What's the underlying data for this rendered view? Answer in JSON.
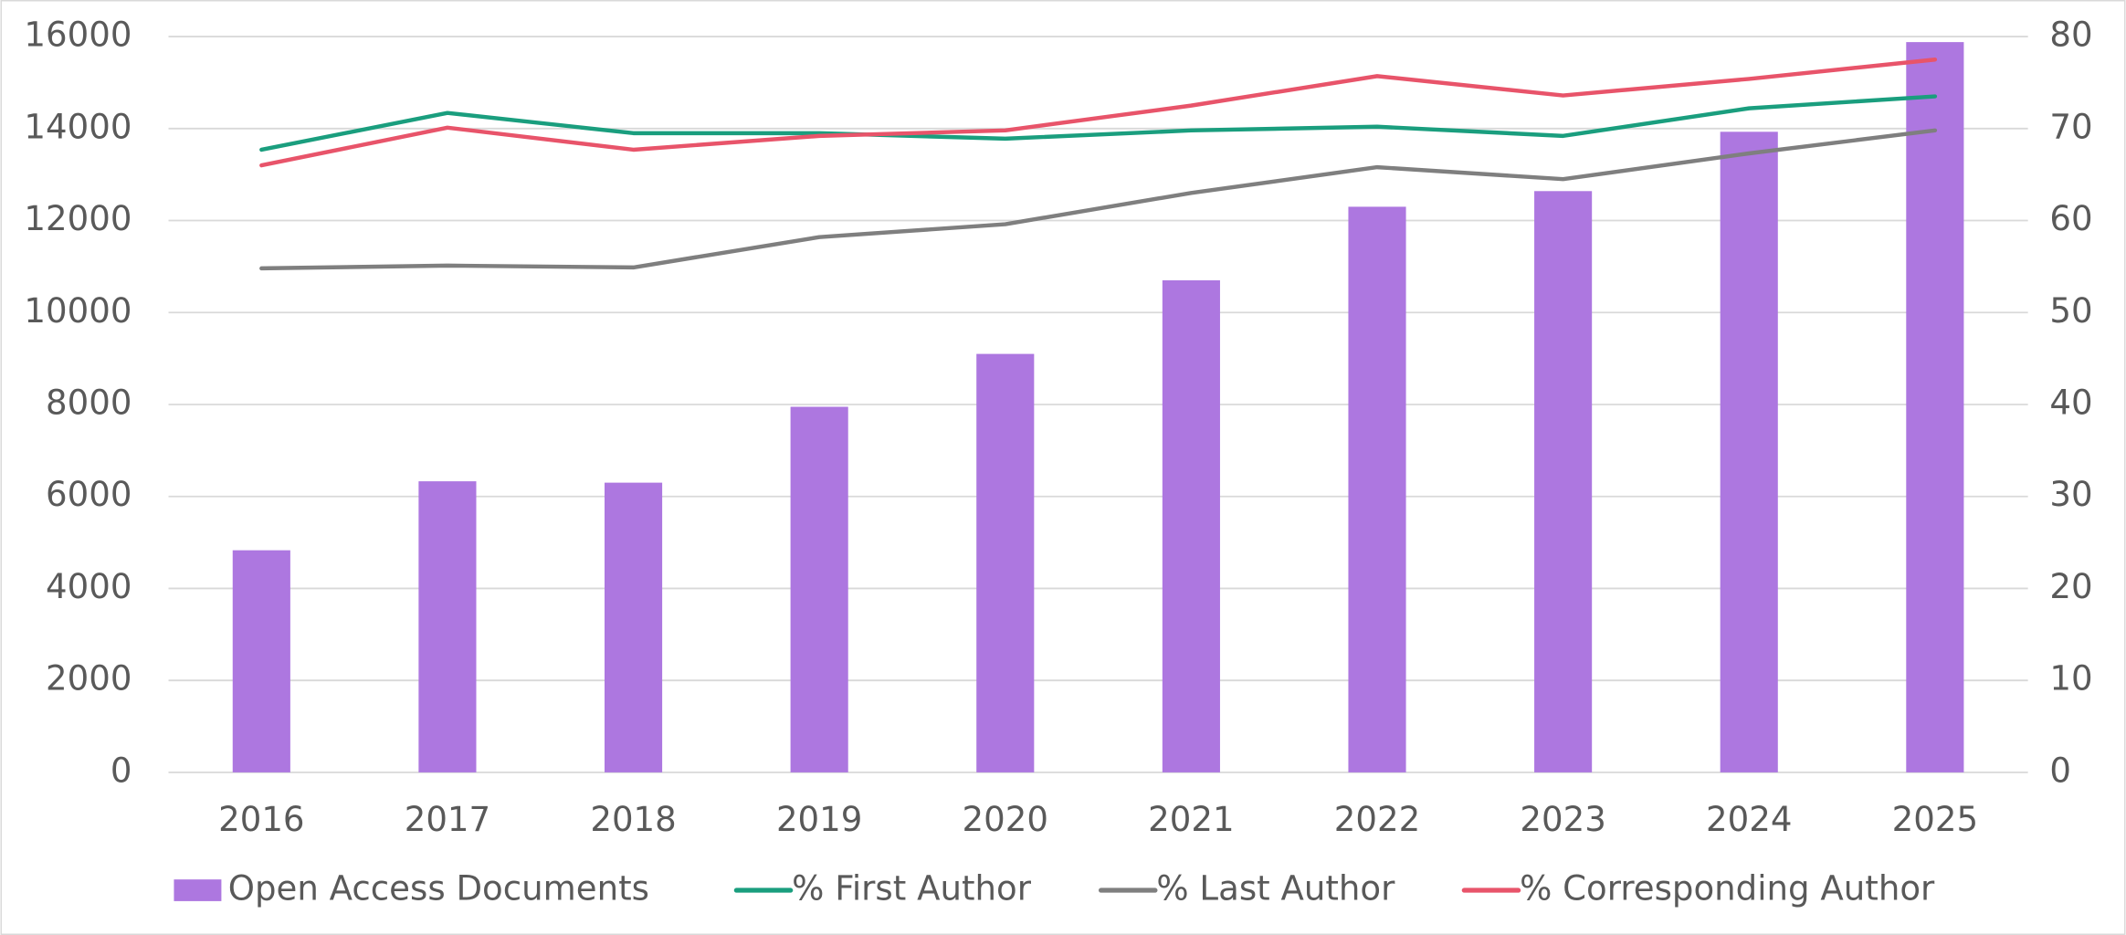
{
  "chart_data": {
    "type": "bar_line",
    "categories": [
      "2016",
      "2017",
      "2018",
      "2019",
      "2020",
      "2021",
      "2022",
      "2023",
      "2024",
      "2025"
    ],
    "series": [
      {
        "name": "Open Access Documents",
        "type": "bar",
        "color": "#ad77e0",
        "values": [
          4830,
          6330,
          6300,
          7950,
          9100,
          10700,
          12300,
          12640,
          13930,
          15880
        ]
      },
      {
        "name": "% First Author",
        "type": "line",
        "axis": "y2",
        "color": "#1a9e7e",
        "values": [
          67.7,
          71.7,
          69.5,
          69.5,
          68.9,
          69.8,
          70.2,
          69.2,
          72.2,
          73.5
        ]
      },
      {
        "name": "% Last Author",
        "type": "line",
        "axis": "y2",
        "color": "#7f7f7f",
        "values": [
          54.8,
          55.1,
          54.9,
          58.2,
          59.6,
          63.0,
          65.8,
          64.5,
          67.3,
          69.8
        ]
      },
      {
        "name": "% Corresponding Author",
        "type": "line",
        "axis": "y2",
        "color": "#e8546a",
        "values": [
          66.0,
          70.1,
          67.7,
          69.2,
          69.8,
          72.5,
          75.7,
          73.6,
          75.4,
          77.5
        ]
      }
    ],
    "ylim": [
      0,
      16000
    ],
    "yticks": [
      0,
      2000,
      4000,
      6000,
      8000,
      10000,
      12000,
      14000,
      16000
    ],
    "y2lim": [
      0,
      80
    ],
    "y2ticks": [
      0,
      10,
      20,
      30,
      40,
      50,
      60,
      70,
      80
    ],
    "grid": true,
    "legend": "bottom"
  }
}
